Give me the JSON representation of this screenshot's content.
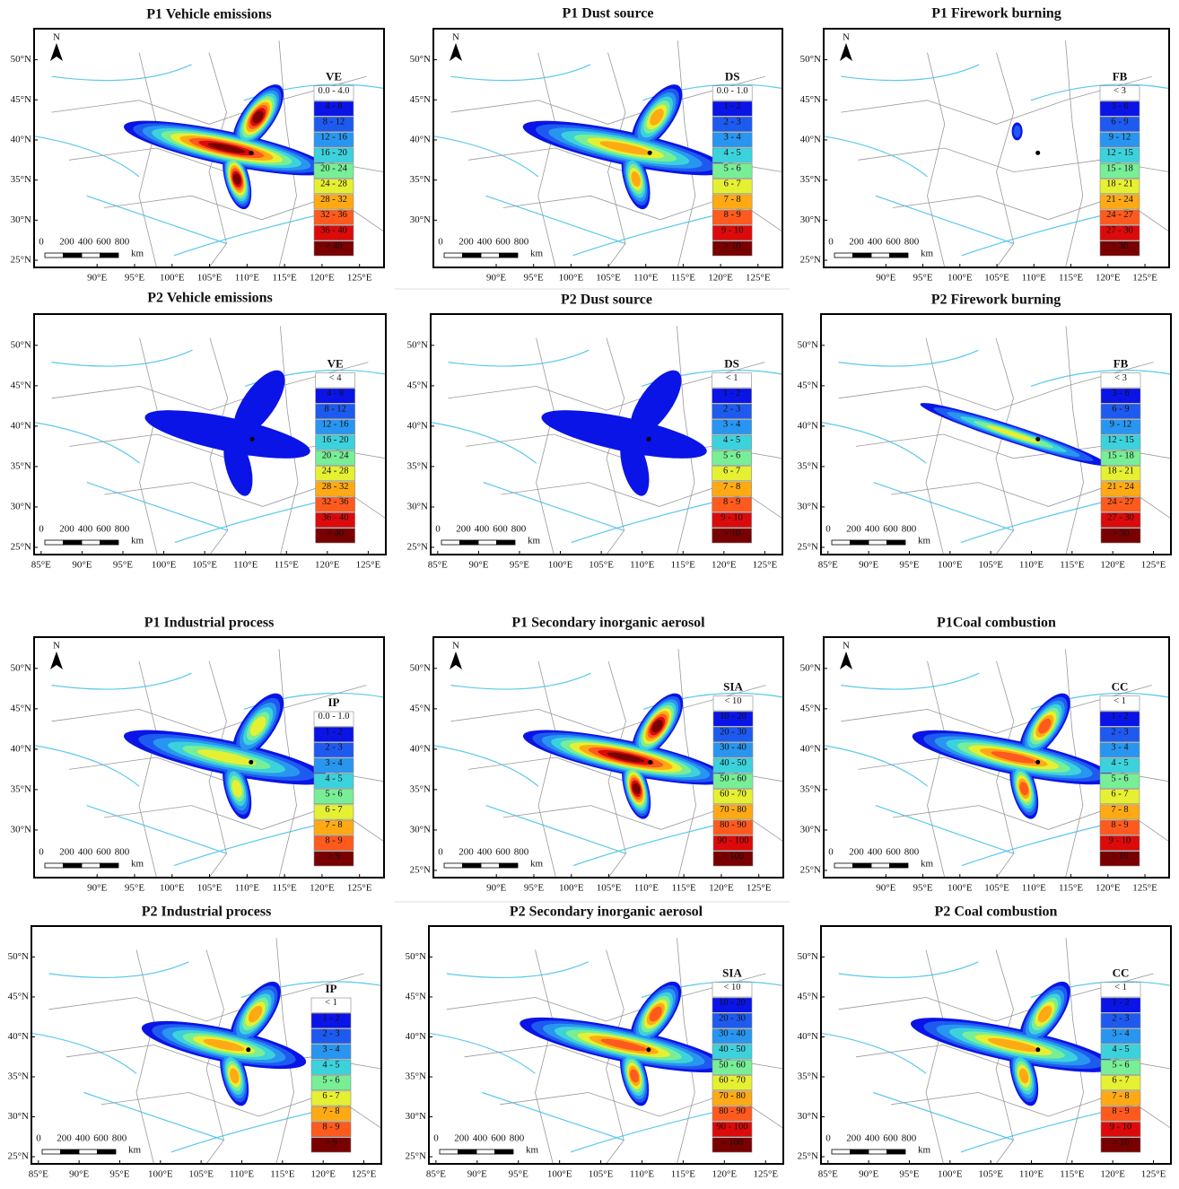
{
  "north_label": "N",
  "scale_bar": {
    "labels": [
      "0",
      "200",
      "400",
      "600",
      "800"
    ],
    "unit": "km"
  },
  "palette": [
    "#ffffff",
    "#0a14e6",
    "#1e5af0",
    "#2896f0",
    "#3cd2dc",
    "#78ee96",
    "#e6f032",
    "#ffaa14",
    "#ff5a1e",
    "#dc0a0a",
    "#780000"
  ],
  "panels": [
    {
      "title": "P1 Vehicle emissions",
      "legend_title": "VE",
      "legend": [
        "0.0 - 4.0",
        "4 - 8",
        "8 - 12",
        "12 - 16",
        "16 - 20",
        "20 - 24",
        "24 - 28",
        "28 - 32",
        "32 - 36",
        "36 - 40",
        "> 40"
      ],
      "lat_ticks": [
        "25°N",
        "30°N",
        "35°N",
        "40°N",
        "45°N",
        "50°N"
      ],
      "lon_ticks": [
        "90°E",
        "95°E",
        "100°E",
        "105°E",
        "110°E",
        "115°E",
        "120°E",
        "125°E"
      ]
    },
    {
      "title": "P1 Dust source",
      "legend_title": "DS",
      "legend": [
        "0.0 - 1.0",
        "1 - 2",
        "2 - 3",
        "3 - 4",
        "4 - 5",
        "5 - 6",
        "6 - 7",
        "7 - 8",
        "8 - 9",
        "9 - 10",
        "> 10"
      ],
      "lat_ticks": [
        "30°N",
        "35°N",
        "40°N",
        "45°N",
        "50°N"
      ],
      "lon_ticks": [
        "90°E",
        "95°E",
        "100°E",
        "105°E",
        "110°E",
        "115°E",
        "120°E",
        "125°E"
      ]
    },
    {
      "title": "P1 Firework burning",
      "legend_title": "FB",
      "legend": [
        "< 3",
        "3 - 6",
        "6 - 9",
        "9 - 12",
        "12 - 15",
        "15 - 18",
        "18 - 21",
        "21 - 24",
        "24 - 27",
        "27 - 30",
        "> 30"
      ],
      "lat_ticks": [
        "25°N",
        "30°N",
        "35°N",
        "40°N",
        "45°N",
        "50°N"
      ],
      "lon_ticks": [
        "90°E",
        "95°E",
        "100°E",
        "105°E",
        "110°E",
        "115°E",
        "120°E",
        "125°E"
      ]
    },
    {
      "title": "P2 Vehicle emissions",
      "legend_title": "VE",
      "legend": [
        "< 4",
        "4 - 8",
        "8 - 12",
        "12 - 16",
        "16 - 20",
        "20 - 24",
        "24 - 28",
        "28 - 32",
        "32 - 36",
        "36 - 40",
        "> 40"
      ],
      "lat_ticks": [
        "25°N",
        "30°N",
        "35°N",
        "40°N",
        "45°N",
        "50°N"
      ],
      "lon_ticks": [
        "85°E",
        "90°E",
        "95°E",
        "100°E",
        "105°E",
        "110°E",
        "115°E",
        "120°E",
        "125°E"
      ]
    },
    {
      "title": "P2 Dust source",
      "legend_title": "DS",
      "legend": [
        "< 1",
        "1 - 2",
        "2 - 3",
        "3 - 4",
        "4 - 5",
        "5 - 6",
        "6 - 7",
        "7 - 8",
        "8 - 9",
        "9 - 10",
        "> 10"
      ],
      "lat_ticks": [
        "25°N",
        "30°N",
        "35°N",
        "40°N",
        "45°N",
        "50°N"
      ],
      "lon_ticks": [
        "85°E",
        "90°E",
        "95°E",
        "100°E",
        "105°E",
        "110°E",
        "115°E",
        "120°E",
        "125°E"
      ]
    },
    {
      "title": "P2 Firework burning",
      "legend_title": "FB",
      "legend": [
        "< 3",
        "3 - 6",
        "6 - 9",
        "9 - 12",
        "12 - 15",
        "15 - 18",
        "18 - 21",
        "21 - 24",
        "24 - 27",
        "27 - 30",
        "> 30"
      ],
      "lat_ticks": [
        "25°N",
        "30°N",
        "35°N",
        "40°N",
        "45°N",
        "50°N"
      ],
      "lon_ticks": [
        "85°E",
        "90°E",
        "95°E",
        "100°E",
        "105°E",
        "110°E",
        "115°E",
        "120°E",
        "125°E"
      ]
    },
    {
      "title": "P1 Industrial process",
      "legend_title": "IP",
      "legend": [
        "0.0 - 1.0",
        "1 - 2",
        "2 - 3",
        "3 - 4",
        "4 - 5",
        "5 - 6",
        "6 - 7",
        "7 - 8",
        "8 - 9",
        "> 9"
      ],
      "lat_ticks": [
        "30°N",
        "35°N",
        "40°N",
        "45°N",
        "50°N"
      ],
      "lon_ticks": [
        "90°E",
        "95°E",
        "100°E",
        "105°E",
        "110°E",
        "115°E",
        "120°E",
        "125°E"
      ]
    },
    {
      "title": "P1 Secondary inorganic aerosol",
      "legend_title": "SIA",
      "legend": [
        "< 10",
        "10 - 20",
        "20 - 30",
        "30 - 40",
        "40 - 50",
        "50 - 60",
        "60 - 70",
        "70 - 80",
        "80 - 90",
        "90 - 100",
        "> 100"
      ],
      "lat_ticks": [
        "25°N",
        "30°N",
        "35°N",
        "40°N",
        "45°N",
        "50°N"
      ],
      "lon_ticks": [
        "90°E",
        "95°E",
        "100°E",
        "105°E",
        "110°E",
        "115°E",
        "120°E",
        "125°E"
      ]
    },
    {
      "title": "P1Coal combustion",
      "legend_title": "CC",
      "legend": [
        "< 1",
        "1 - 2",
        "2 - 3",
        "3 - 4",
        "4 - 5",
        "5 - 6",
        "6 - 7",
        "7 - 8",
        "8 - 9",
        "9 - 10",
        "> 10"
      ],
      "lat_ticks": [
        "25°N",
        "30°N",
        "35°N",
        "40°N",
        "45°N",
        "50°N"
      ],
      "lon_ticks": [
        "90°E",
        "95°E",
        "100°E",
        "105°E",
        "110°E",
        "115°E",
        "120°E",
        "125°E"
      ]
    },
    {
      "title": "P2 Industrial process",
      "legend_title": "IP",
      "legend": [
        "< 1",
        "1 - 2",
        "2 - 3",
        "3 - 4",
        "4 - 5",
        "5 - 6",
        "6 - 7",
        "7 - 8",
        "8 - 9",
        "> 9"
      ],
      "lat_ticks": [
        "25°N",
        "30°N",
        "35°N",
        "40°N",
        "45°N",
        "50°N"
      ],
      "lon_ticks": [
        "85°E",
        "90°E",
        "95°E",
        "100°E",
        "105°E",
        "110°E",
        "115°E",
        "120°E",
        "125°E"
      ]
    },
    {
      "title": "P2 Secondary inorganic aerosol",
      "legend_title": "SIA",
      "legend": [
        "< 10",
        "10 - 20",
        "20 - 30",
        "30 - 40",
        "40 - 50",
        "50 - 60",
        "60 - 70",
        "70 - 80",
        "80 - 90",
        "90 - 100",
        "> 100"
      ],
      "lat_ticks": [
        "25°N",
        "30°N",
        "35°N",
        "40°N",
        "45°N",
        "50°N"
      ],
      "lon_ticks": [
        "85°E",
        "90°E",
        "95°E",
        "100°E",
        "105°E",
        "110°E",
        "115°E",
        "120°E",
        "125°E"
      ]
    },
    {
      "title": "P2 Coal combustion",
      "legend_title": "CC",
      "legend": [
        "< 1",
        "1 - 2",
        "2 - 3",
        "3 - 4",
        "4 - 5",
        "5 - 6",
        "6 - 7",
        "7 - 8",
        "8 - 9",
        "9 - 10",
        "> 10"
      ],
      "lat_ticks": [
        "25°N",
        "30°N",
        "35°N",
        "40°N",
        "45°N",
        "50°N"
      ],
      "lon_ticks": [
        "85°E",
        "90°E",
        "95°E",
        "100°E",
        "105°E",
        "110°E",
        "115°E",
        "120°E",
        "125°E"
      ]
    }
  ]
}
